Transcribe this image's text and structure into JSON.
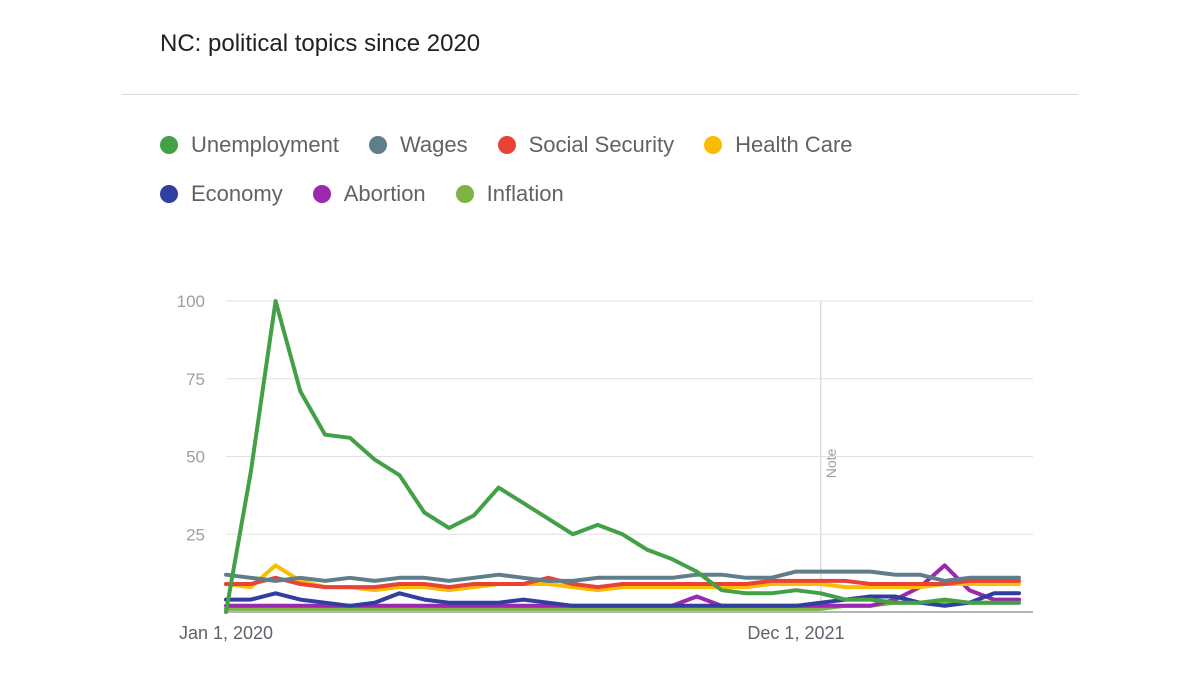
{
  "chart_data": {
    "type": "line",
    "title": "NC: political topics since 2020",
    "xlabel": "",
    "ylabel": "",
    "ylim": [
      0,
      100
    ],
    "yticks": [
      "25",
      "50",
      "75",
      "100"
    ],
    "x_tick_labels": [
      {
        "label": "Jan 1, 2020",
        "index": 0
      },
      {
        "label": "Dec 1, 2021",
        "index": 23
      }
    ],
    "annotation": {
      "label": "Note",
      "index": 24
    },
    "legend_position": "top",
    "grid": true,
    "series": [
      {
        "name": "Unemployment",
        "color": "#43a047",
        "values": [
          0,
          45,
          100,
          71,
          57,
          56,
          49,
          44,
          32,
          27,
          31,
          40,
          35,
          30,
          25,
          28,
          25,
          20,
          17,
          13,
          7,
          6,
          6,
          7,
          6,
          4,
          4,
          3,
          3,
          4,
          3,
          3,
          3
        ]
      },
      {
        "name": "Wages",
        "color": "#607d8b",
        "values": [
          12,
          11,
          10,
          11,
          10,
          11,
          10,
          11,
          11,
          10,
          11,
          12,
          11,
          10,
          10,
          11,
          11,
          11,
          11,
          12,
          12,
          11,
          11,
          13,
          13,
          13,
          13,
          12,
          12,
          10,
          11,
          11,
          11
        ]
      },
      {
        "name": "Social Security",
        "color": "#ea4335",
        "values": [
          9,
          9,
          11,
          9,
          8,
          8,
          8,
          9,
          9,
          8,
          9,
          9,
          9,
          11,
          9,
          8,
          9,
          9,
          9,
          9,
          9,
          9,
          10,
          10,
          10,
          10,
          9,
          9,
          9,
          9,
          10,
          10,
          10
        ]
      },
      {
        "name": "Health Care",
        "color": "#fbbc04",
        "values": [
          9,
          8,
          15,
          10,
          8,
          8,
          7,
          8,
          8,
          7,
          8,
          9,
          9,
          9,
          8,
          7,
          8,
          8,
          8,
          8,
          8,
          8,
          9,
          9,
          9,
          8,
          8,
          8,
          8,
          9,
          9,
          9,
          9
        ]
      },
      {
        "name": "Economy",
        "color": "#303f9f",
        "values": [
          4,
          4,
          6,
          4,
          3,
          2,
          3,
          6,
          4,
          3,
          3,
          3,
          4,
          3,
          2,
          2,
          2,
          2,
          2,
          2,
          2,
          2,
          2,
          2,
          3,
          4,
          5,
          5,
          3,
          2,
          3,
          6,
          6
        ]
      },
      {
        "name": "Abortion",
        "color": "#9c27b0",
        "values": [
          2,
          2,
          2,
          2,
          2,
          2,
          2,
          2,
          2,
          2,
          2,
          2,
          2,
          2,
          2,
          2,
          2,
          2,
          2,
          5,
          2,
          2,
          2,
          2,
          2,
          2,
          2,
          4,
          8,
          15,
          7,
          4,
          4
        ]
      },
      {
        "name": "Inflation",
        "color": "#7cb342",
        "values": [
          1,
          1,
          1,
          1,
          1,
          1,
          1,
          1,
          1,
          1,
          1,
          1,
          1,
          1,
          1,
          1,
          1,
          1,
          1,
          1,
          1,
          1,
          1,
          1,
          1,
          2,
          2,
          3,
          3,
          3,
          3,
          3,
          3
        ]
      }
    ]
  }
}
